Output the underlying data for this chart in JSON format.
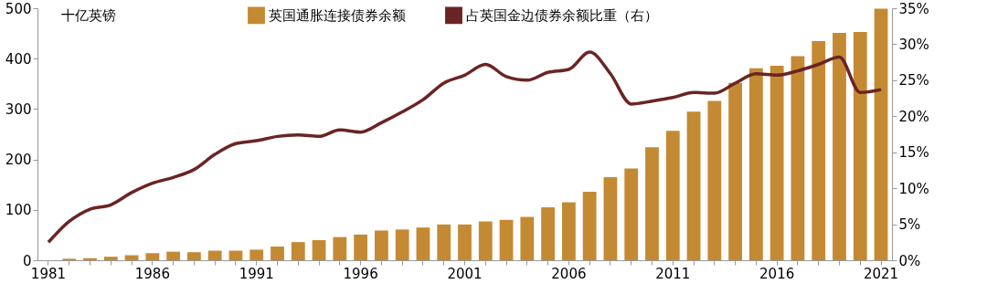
{
  "chart_data": {
    "type": "bar",
    "ylabel": "十亿英镑",
    "legend": "top",
    "categories": [
      "1981",
      null,
      null,
      null,
      null,
      "1986",
      null,
      null,
      null,
      null,
      "1991",
      null,
      null,
      null,
      null,
      "1996",
      null,
      null,
      null,
      null,
      "2001",
      null,
      null,
      null,
      null,
      "2006",
      null,
      null,
      null,
      null,
      "2011",
      null,
      null,
      null,
      null,
      "2016",
      null,
      null,
      null,
      null,
      "2021"
    ],
    "ylim": [
      0,
      500
    ],
    "yticks": [
      0,
      100,
      200,
      300,
      400,
      500
    ],
    "y2lim": [
      0,
      35
    ],
    "y2ticks": [
      {
        "value": 0,
        "label": "0%"
      },
      {
        "value": 5,
        "label": "5%"
      },
      {
        "value": 10,
        "label": "10%"
      },
      {
        "value": 15,
        "label": "15%"
      },
      {
        "value": 20,
        "label": "20%"
      },
      {
        "value": 25,
        "label": "25%"
      },
      {
        "value": 30,
        "label": "30%"
      },
      {
        "value": 35,
        "label": "35%"
      }
    ],
    "grid": false,
    "series": [
      {
        "name": "英国通胀连接债券余额",
        "color": "#c48a33",
        "values": [
          null,
          3,
          4,
          7,
          10,
          14,
          17,
          16,
          19,
          19,
          21,
          27,
          36,
          40,
          46,
          51,
          59,
          61,
          65,
          71,
          71,
          77,
          80,
          86,
          105,
          115,
          136,
          165,
          182,
          224,
          257,
          295,
          316,
          352,
          381,
          386,
          405,
          435,
          451,
          453,
          499
        ]
      },
      {
        "name": "占英国金边债券余额比重（右）",
        "type": "line",
        "axis": "y2",
        "color": "#6b2424",
        "values": [
          2.5,
          5.4,
          7.1,
          7.7,
          9.4,
          10.7,
          11.5,
          12.6,
          14.7,
          16.2,
          16.6,
          17.2,
          17.4,
          17.2,
          18.1,
          17.8,
          19.1,
          20.6,
          22.3,
          24.6,
          25.7,
          27.2,
          25.5,
          25.0,
          26.1,
          26.5,
          28.9,
          25.9,
          21.7,
          22.1,
          22.6,
          23.3,
          23.2,
          24.6,
          25.9,
          25.7,
          26.3,
          27.2,
          28.2,
          23.3,
          23.7
        ]
      }
    ]
  }
}
